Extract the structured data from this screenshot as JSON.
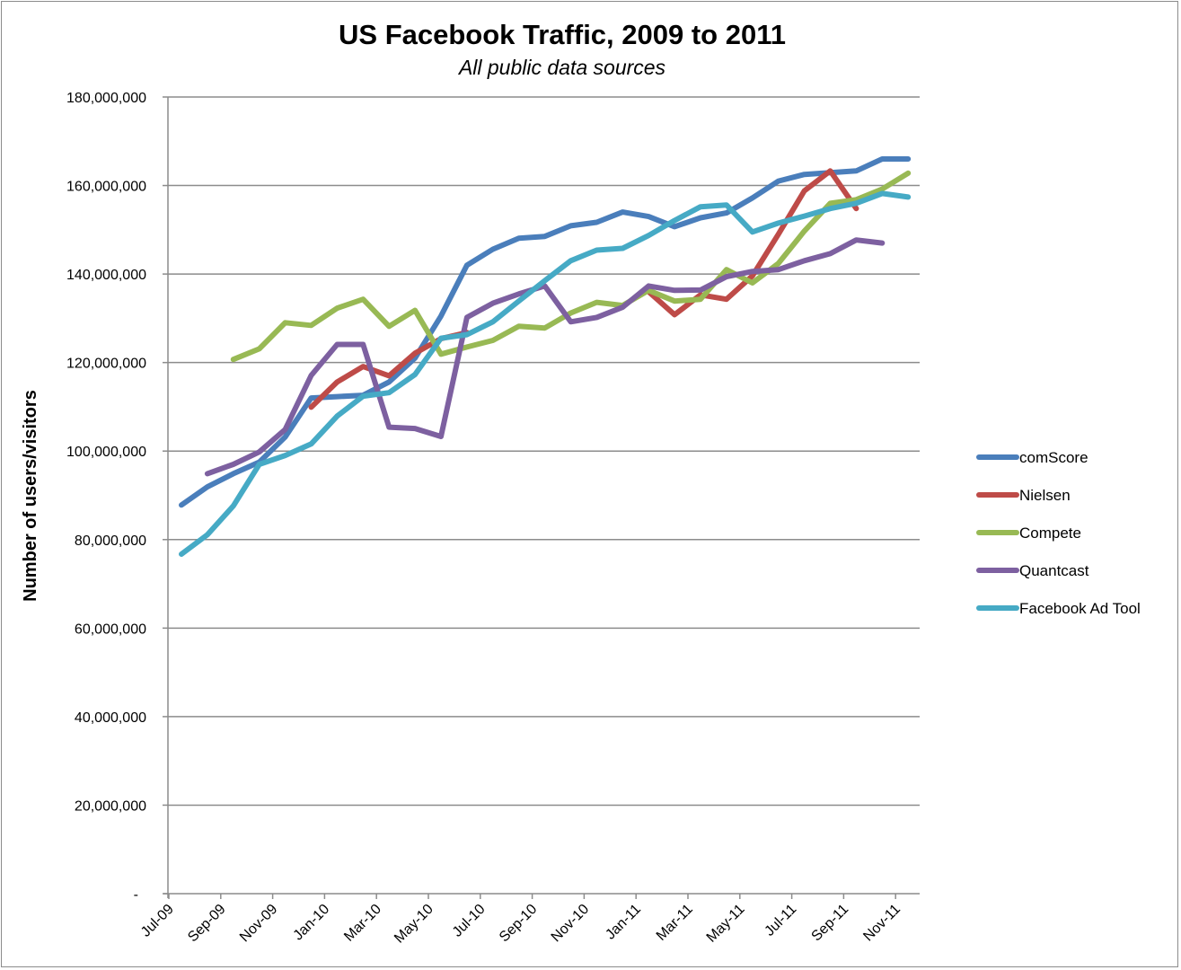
{
  "chart_data": {
    "type": "line",
    "title": "US Facebook Traffic, 2009 to 2011",
    "subtitle": "All public data sources",
    "xlabel": "",
    "ylabel": "Number of users/visitors",
    "ylim": [
      0,
      180000000
    ],
    "y_ticks": [
      0,
      20000000,
      40000000,
      60000000,
      80000000,
      100000000,
      120000000,
      140000000,
      160000000,
      180000000
    ],
    "y_tick_labels": [
      "-",
      "20,000,000",
      "40,000,000",
      "60,000,000",
      "80,000,000",
      "100,000,000",
      "120,000,000",
      "140,000,000",
      "160,000,000",
      "180,000,000"
    ],
    "x_tick_labels": [
      "Jul-09",
      "Sep-09",
      "Nov-09",
      "Jan-10",
      "Mar-10",
      "May-10",
      "Jul-10",
      "Sep-10",
      "Nov-10",
      "Jan-11",
      "Mar-11",
      "May-11",
      "Jul-11",
      "Sep-11",
      "Nov-11"
    ],
    "grid": true,
    "legend_position": "right",
    "categories": [
      "Jul-09",
      "Aug-09",
      "Sep-09",
      "Oct-09",
      "Nov-09",
      "Dec-09",
      "Jan-10",
      "Feb-10",
      "Mar-10",
      "Apr-10",
      "May-10",
      "Jun-10",
      "Jul-10",
      "Aug-10",
      "Sep-10",
      "Oct-10",
      "Nov-10",
      "Dec-10",
      "Jan-11",
      "Feb-11",
      "Mar-11",
      "Apr-11",
      "May-11",
      "Jun-11",
      "Jul-11",
      "Aug-11",
      "Sep-11",
      "Oct-11",
      "Nov-11"
    ],
    "series": [
      {
        "name": "comScore",
        "color": "#4A7EBB",
        "values": [
          87800000,
          91900000,
          94900000,
          97500000,
          103200000,
          112000000,
          112300000,
          112600000,
          115600000,
          121000000,
          130500000,
          142000000,
          145600000,
          148100000,
          148500000,
          150900000,
          151700000,
          154000000,
          153000000,
          150700000,
          152700000,
          153800000,
          157200000,
          161000000,
          162500000,
          162900000,
          163300000,
          166000000,
          166000000
        ]
      },
      {
        "name": "Nielsen",
        "color": "#BE4B48",
        "values": [
          null,
          null,
          null,
          null,
          null,
          109900000,
          115600000,
          119100000,
          117000000,
          122100000,
          125400000,
          126800000,
          null,
          null,
          null,
          null,
          null,
          null,
          136000000,
          130800000,
          135300000,
          134300000,
          139600000,
          149000000,
          158800000,
          163300000,
          154800000,
          null,
          null
        ]
      },
      {
        "name": "Compete",
        "color": "#98B954",
        "values": [
          null,
          null,
          120700000,
          123100000,
          129000000,
          128400000,
          132300000,
          134300000,
          128200000,
          131800000,
          121900000,
          123500000,
          125000000,
          128200000,
          127800000,
          131200000,
          133600000,
          132900000,
          136300000,
          133900000,
          134300000,
          141000000,
          138000000,
          142400000,
          149700000,
          156000000,
          156800000,
          159200000,
          162800000
        ]
      },
      {
        "name": "Quantcast",
        "color": "#7D60A0",
        "values": [
          null,
          94900000,
          97000000,
          99800000,
          104900000,
          117100000,
          124100000,
          124100000,
          105400000,
          105100000,
          103300000,
          130200000,
          133400000,
          135500000,
          137300000,
          129200000,
          130200000,
          132500000,
          137300000,
          136300000,
          136400000,
          139400000,
          140600000,
          141000000,
          143000000,
          144600000,
          147700000,
          147000000,
          null
        ]
      },
      {
        "name": "Facebook Ad Tool",
        "color": "#46AAC5",
        "values": [
          76700000,
          81100000,
          87600000,
          97000000,
          99000000,
          101600000,
          107900000,
          112400000,
          113200000,
          117300000,
          125500000,
          126300000,
          129200000,
          133900000,
          138500000,
          143000000,
          145400000,
          145800000,
          148700000,
          152100000,
          155200000,
          155600000,
          149500000,
          151500000,
          153100000,
          154800000,
          156000000,
          158200000,
          157400000
        ]
      }
    ]
  }
}
